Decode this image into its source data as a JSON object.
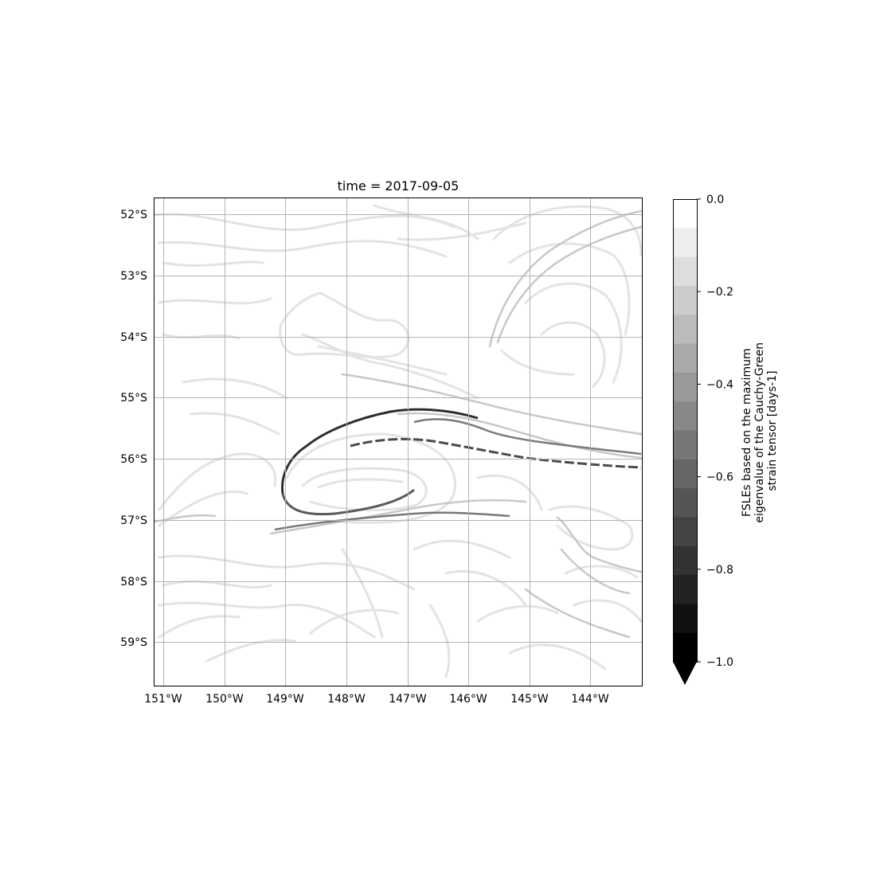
{
  "title": "time = 2017-09-05",
  "map": {
    "lon_labels": [
      "151°W",
      "150°W",
      "149°W",
      "148°W",
      "147°W",
      "146°W",
      "145°W",
      "144°W"
    ],
    "lat_labels": [
      "52°S",
      "53°S",
      "54°S",
      "55°S",
      "56°S",
      "57°S",
      "58°S",
      "59°S"
    ],
    "lon_range": [
      -151.15,
      -143.15
    ],
    "lat_range": [
      -59.72,
      -51.72
    ],
    "gridlines": true,
    "colormap": "greys_reversed"
  },
  "colorbar": {
    "label_lines": [
      "FSLEs based on the maximum",
      "eigenvalue of the Cauchy-Green",
      "strain tensor [days-1]"
    ],
    "tick_labels": [
      "0.0",
      "−0.2",
      "−0.4",
      "−0.6",
      "−0.8",
      "−1.0"
    ],
    "tick_values": [
      0.0,
      -0.2,
      -0.4,
      -0.6,
      -0.8,
      -1.0
    ],
    "range": [
      -1.0,
      0.0
    ],
    "levels": 16,
    "extend": "min"
  }
}
